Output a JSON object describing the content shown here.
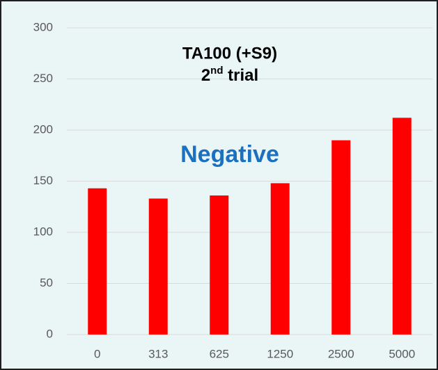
{
  "chart_data": {
    "type": "bar",
    "title": "TA100 (+S9)",
    "subtitle": [
      "2",
      "nd",
      " trial"
    ],
    "annotation": "Negative",
    "categories": [
      "0",
      "313",
      "625",
      "1250",
      "2500",
      "5000"
    ],
    "values": [
      143,
      133,
      136,
      148,
      190,
      212
    ],
    "color": "#ff0000",
    "ylim": [
      0,
      300
    ],
    "yticks": [
      0,
      50,
      100,
      150,
      200,
      250,
      300
    ],
    "grid": true
  }
}
